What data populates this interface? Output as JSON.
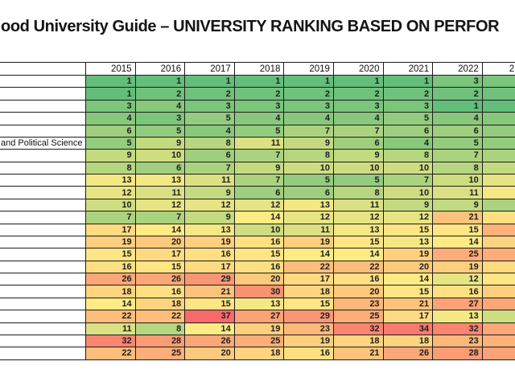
{
  "title": {
    "text": "ood University Guide – UNIVERSITY RANKING BASED ON PERFOR"
  },
  "chart_data": {
    "type": "heatmap",
    "title": "ood University Guide – UNIVERSITY RANKING BASED ON PERFOR",
    "columns": [
      "2015",
      "2016",
      "2017",
      "2018",
      "2019",
      "2020",
      "2021",
      "2022"
    ],
    "partial_column": {
      "header_visible": "2",
      "cell_colors": [
        "#7BC57C",
        "#6FC17C",
        "#63BE7B",
        "#87C87D",
        "#93CC7E",
        "#93CC7E",
        "#ABD37F",
        "#C3DA81",
        "#E7E483",
        "#F3E883",
        "#ABD37F",
        "#FEE082",
        "#FCB279",
        "#FED480",
        "#FCAD78",
        "#FEDA81",
        "#FFE583",
        "#FDCF7F",
        "#FBA777",
        "#CFDD81",
        "#FBA777",
        "#FCB279",
        "#FBA276"
      ]
    },
    "row_labels": [
      "",
      "",
      "",
      "",
      "",
      "and Political Science",
      "",
      "",
      "",
      "",
      "",
      "",
      "",
      "",
      "",
      "",
      "",
      "",
      "",
      "",
      "",
      "",
      ""
    ],
    "values": [
      [
        1,
        1,
        1,
        1,
        1,
        1,
        1,
        3
      ],
      [
        1,
        2,
        2,
        2,
        2,
        2,
        2,
        2
      ],
      [
        3,
        4,
        3,
        3,
        3,
        3,
        3,
        1
      ],
      [
        4,
        3,
        5,
        4,
        4,
        4,
        5,
        4
      ],
      [
        6,
        5,
        4,
        5,
        7,
        7,
        6,
        6
      ],
      [
        5,
        9,
        8,
        11,
        9,
        6,
        4,
        5
      ],
      [
        9,
        10,
        6,
        7,
        8,
        9,
        8,
        7
      ],
      [
        8,
        6,
        7,
        9,
        10,
        10,
        10,
        8
      ],
      [
        13,
        13,
        11,
        7,
        5,
        5,
        7,
        10
      ],
      [
        12,
        11,
        9,
        6,
        6,
        8,
        10,
        11
      ],
      [
        10,
        12,
        12,
        12,
        13,
        11,
        9,
        9
      ],
      [
        7,
        7,
        9,
        14,
        12,
        12,
        12,
        21
      ],
      [
        17,
        14,
        13,
        10,
        11,
        13,
        15,
        15
      ],
      [
        19,
        20,
        19,
        16,
        19,
        15,
        13,
        14
      ],
      [
        15,
        17,
        16,
        15,
        14,
        14,
        19,
        25
      ],
      [
        16,
        15,
        17,
        16,
        22,
        22,
        20,
        19
      ],
      [
        26,
        26,
        29,
        20,
        17,
        16,
        14,
        12
      ],
      [
        18,
        16,
        21,
        30,
        18,
        20,
        15,
        16
      ],
      [
        14,
        18,
        15,
        13,
        15,
        23,
        21,
        27
      ],
      [
        22,
        22,
        37,
        27,
        29,
        25,
        17,
        13
      ],
      [
        11,
        8,
        14,
        19,
        23,
        32,
        34,
        32
      ],
      [
        32,
        28,
        26,
        25,
        19,
        18,
        18,
        23
      ],
      [
        22,
        25,
        20,
        18,
        16,
        21,
        26,
        28
      ]
    ],
    "color_scale": {
      "min_value": 1,
      "mid_value": 14,
      "max_value": 37,
      "min_color": "#63BE7B",
      "mid_color": "#FFEB84",
      "max_color": "#F8696B"
    }
  }
}
